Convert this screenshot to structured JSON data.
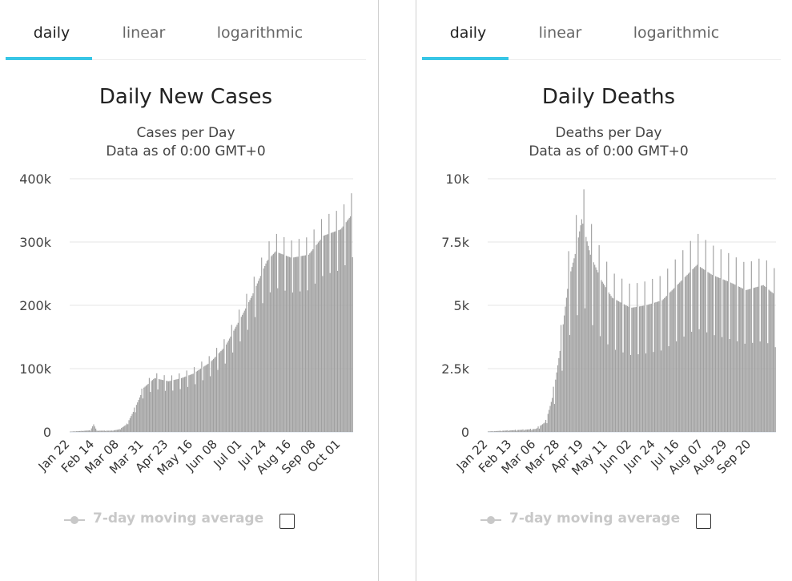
{
  "panels": [
    {
      "tabs": [
        {
          "label": "daily",
          "active": true
        },
        {
          "label": "linear",
          "active": false
        },
        {
          "label": "logarithmic",
          "active": false
        }
      ],
      "legend": {
        "label": "7-day moving average",
        "checked": false
      }
    },
    {
      "tabs": [
        {
          "label": "daily",
          "active": true
        },
        {
          "label": "linear",
          "active": false
        },
        {
          "label": "logarithmic",
          "active": false
        }
      ],
      "legend": {
        "label": "7-day moving average",
        "checked": false
      }
    }
  ],
  "colors": {
    "bar": "#a0a0a0",
    "tab_underline": "#38c6e6",
    "grid": "#e6e6e6",
    "legend_muted": "#c8c8c8"
  },
  "chart_data": [
    {
      "type": "bar",
      "title": "Daily New Cases",
      "subtitle": [
        "Cases per Day",
        "Data as of 0:00 GMT+0"
      ],
      "ylim": [
        0,
        400000
      ],
      "yticks": [
        0,
        100000,
        200000,
        300000,
        400000
      ],
      "ytick_labels": [
        "0",
        "100k",
        "200k",
        "300k",
        "400k"
      ],
      "x_start": "2020-01-22",
      "x_end": "2020-10-12",
      "xtick_labels": [
        "Jan 22",
        "Feb 14",
        "Mar 08",
        "Mar 31",
        "Apr 23",
        "May 16",
        "Jun 08",
        "Jul 01",
        "Jul 24",
        "Aug 16",
        "Sep 08",
        "Oct 01"
      ],
      "anchors": [
        [
          "2020-01-22",
          500
        ],
        [
          "2020-02-10",
          2500
        ],
        [
          "2020-02-13",
          12000
        ],
        [
          "2020-02-16",
          2000
        ],
        [
          "2020-03-01",
          2000
        ],
        [
          "2020-03-08",
          4000
        ],
        [
          "2020-03-15",
          12000
        ],
        [
          "2020-03-22",
          35000
        ],
        [
          "2020-03-31",
          70000
        ],
        [
          "2020-04-10",
          85000
        ],
        [
          "2020-04-23",
          80000
        ],
        [
          "2020-05-05",
          85000
        ],
        [
          "2020-05-16",
          92000
        ],
        [
          "2020-06-01",
          110000
        ],
        [
          "2020-06-15",
          135000
        ],
        [
          "2020-07-01",
          185000
        ],
        [
          "2020-07-10",
          215000
        ],
        [
          "2020-07-24",
          270000
        ],
        [
          "2020-08-01",
          285000
        ],
        [
          "2020-08-16",
          275000
        ],
        [
          "2020-09-01",
          280000
        ],
        [
          "2020-09-15",
          310000
        ],
        [
          "2020-10-01",
          320000
        ],
        [
          "2020-10-12",
          345000
        ]
      ],
      "weekly_dip": 0.8,
      "values_note": "daily values are piecewise-linear between anchors, with a weekly low day"
    },
    {
      "type": "bar",
      "title": "Daily Deaths",
      "subtitle": [
        "Deaths per Day",
        "Data as of 0:00 GMT+0"
      ],
      "ylim": [
        0,
        10000
      ],
      "yticks": [
        0,
        2500,
        5000,
        7500,
        10000
      ],
      "ytick_labels": [
        "0",
        "2.5k",
        "5k",
        "7.5k",
        "10k"
      ],
      "x_start": "2020-01-22",
      "x_end": "2020-10-12",
      "xtick_labels": [
        "Jan 22",
        "Feb 13",
        "Mar 06",
        "Mar 28",
        "Apr 19",
        "May 11",
        "Jun 02",
        "Jun 24",
        "Jul 16",
        "Aug 07",
        "Aug 29",
        "Sep 20"
      ],
      "anchors": [
        [
          "2020-01-22",
          20
        ],
        [
          "2020-02-10",
          60
        ],
        [
          "2020-02-25",
          90
        ],
        [
          "2020-03-06",
          120
        ],
        [
          "2020-03-15",
          400
        ],
        [
          "2020-03-22",
          1500
        ],
        [
          "2020-03-28",
          3200
        ],
        [
          "2020-04-05",
          6000
        ],
        [
          "2020-04-12",
          7200
        ],
        [
          "2020-04-17",
          8400
        ],
        [
          "2020-04-25",
          7000
        ],
        [
          "2020-05-05",
          6000
        ],
        [
          "2020-05-15",
          5300
        ],
        [
          "2020-06-01",
          4900
        ],
        [
          "2020-06-15",
          5000
        ],
        [
          "2020-06-30",
          5200
        ],
        [
          "2020-07-16",
          5900
        ],
        [
          "2020-08-01",
          6600
        ],
        [
          "2020-08-15",
          6200
        ],
        [
          "2020-09-01",
          5900
        ],
        [
          "2020-09-15",
          5600
        ],
        [
          "2020-10-01",
          5800
        ],
        [
          "2020-10-12",
          5400
        ]
      ],
      "weekly_dip": 0.62,
      "values_note": "daily values are piecewise-linear between anchors, with a weekly low day"
    }
  ]
}
